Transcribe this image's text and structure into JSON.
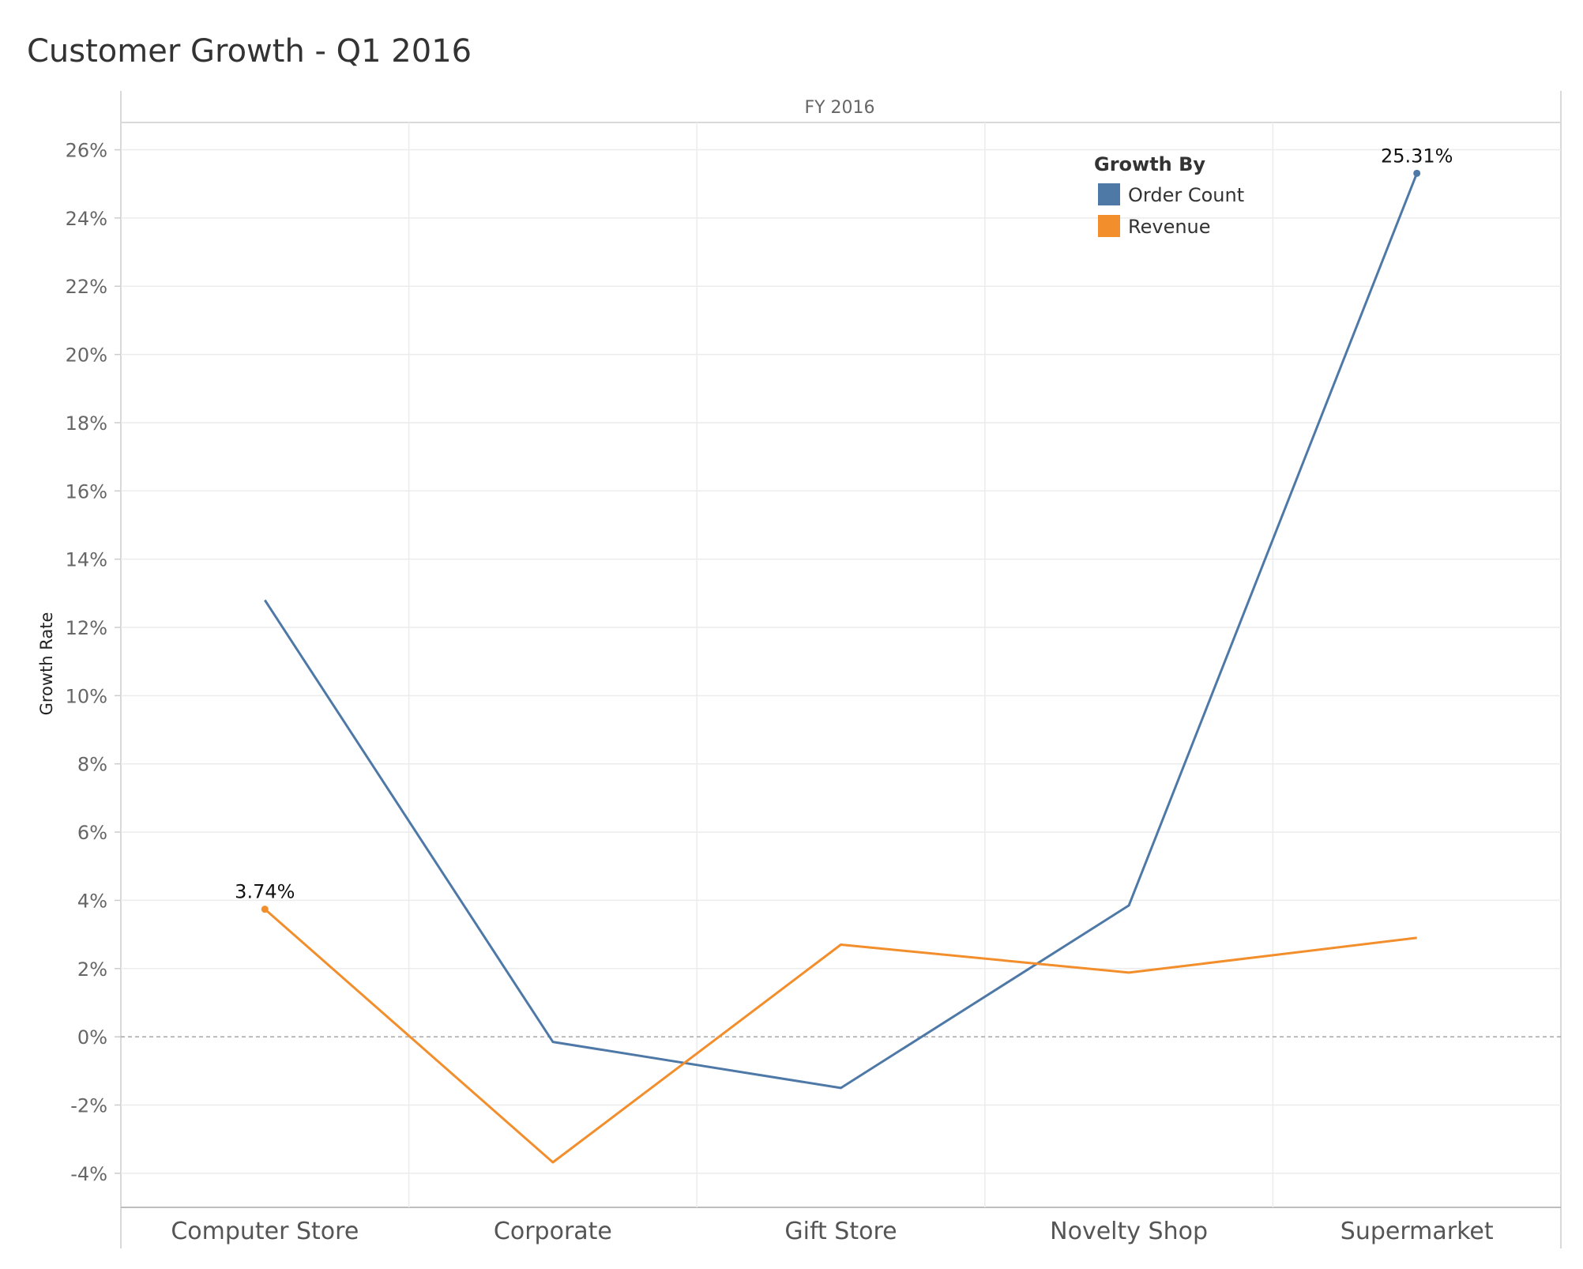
{
  "chart_data": {
    "type": "line",
    "title": "Customer Growth - Q1 2016",
    "pane_header": "FY 2016",
    "ylabel": "Growth Rate",
    "xlabel": "",
    "categories": [
      "Computer Store",
      "Corporate",
      "Gift Store",
      "Novelty Shop",
      "Supermarket"
    ],
    "ylim": [
      -5,
      26.8
    ],
    "y_ticks": [
      -4,
      -2,
      0,
      2,
      4,
      6,
      8,
      10,
      12,
      14,
      16,
      18,
      20,
      22,
      24,
      26
    ],
    "y_tick_labels": [
      "-4%",
      "-2%",
      "0%",
      "2%",
      "4%",
      "6%",
      "8%",
      "10%",
      "12%",
      "14%",
      "16%",
      "18%",
      "20%",
      "22%",
      "24%",
      "26%"
    ],
    "grid": true,
    "zero_line": "dashed",
    "legend": {
      "title": "Growth By",
      "placement": "top-right",
      "entries": [
        "Order Count",
        "Revenue"
      ]
    },
    "series": [
      {
        "name": "Order Count",
        "color": "#4e79a7",
        "values": [
          12.8,
          -0.15,
          -1.5,
          3.85,
          25.31
        ],
        "labels": [
          {
            "index": 4,
            "text": "25.31%"
          }
        ]
      },
      {
        "name": "Revenue",
        "color": "#f28e2b",
        "values": [
          3.74,
          -3.68,
          2.7,
          1.88,
          2.9
        ],
        "labels": [
          {
            "index": 0,
            "text": "3.74%"
          }
        ]
      }
    ]
  }
}
